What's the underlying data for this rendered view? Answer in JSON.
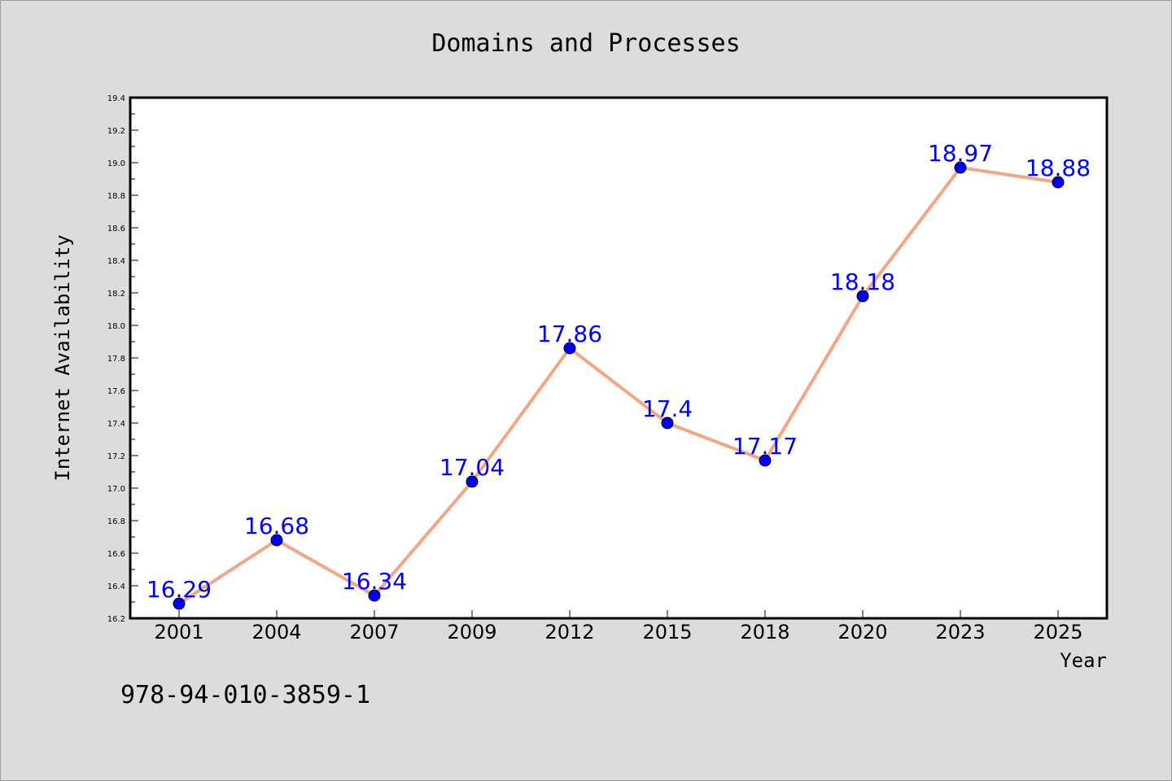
{
  "chart_data": {
    "type": "line",
    "title": "Domains and Processes",
    "xlabel": "Year",
    "ylabel": "Internet Availability",
    "footer_text": "978-94-010-3859-1",
    "categories": [
      "2001",
      "2004",
      "2007",
      "2009",
      "2012",
      "2015",
      "2018",
      "2020",
      "2023",
      "2025"
    ],
    "series": [
      {
        "values": [
          16.29,
          16.68,
          16.34,
          17.04,
          17.86,
          17.4,
          17.17,
          18.18,
          18.97,
          18.88
        ]
      }
    ],
    "data_labels": [
      "16.29",
      "16.68",
      "16.34",
      "17.04",
      "17.86",
      "17.4",
      "17.17",
      "18.18",
      "18.97",
      "18.88"
    ],
    "ylim": [
      16.2,
      19.4
    ],
    "y_ticks": [
      "16.2",
      "16.4",
      "16.6",
      "16.8",
      "17.0",
      "17.2",
      "17.4",
      "17.6",
      "17.8",
      "18.0",
      "18.2",
      "18.4",
      "18.6",
      "18.8",
      "19.0",
      "19.2",
      "19.4"
    ],
    "grid": false,
    "legend": "none",
    "colors": {
      "line": "#f4a582",
      "marker": "#0000ff",
      "data_label": "#0000ff",
      "background": "#dcdcdc",
      "plot_background": "#ffffff"
    }
  }
}
